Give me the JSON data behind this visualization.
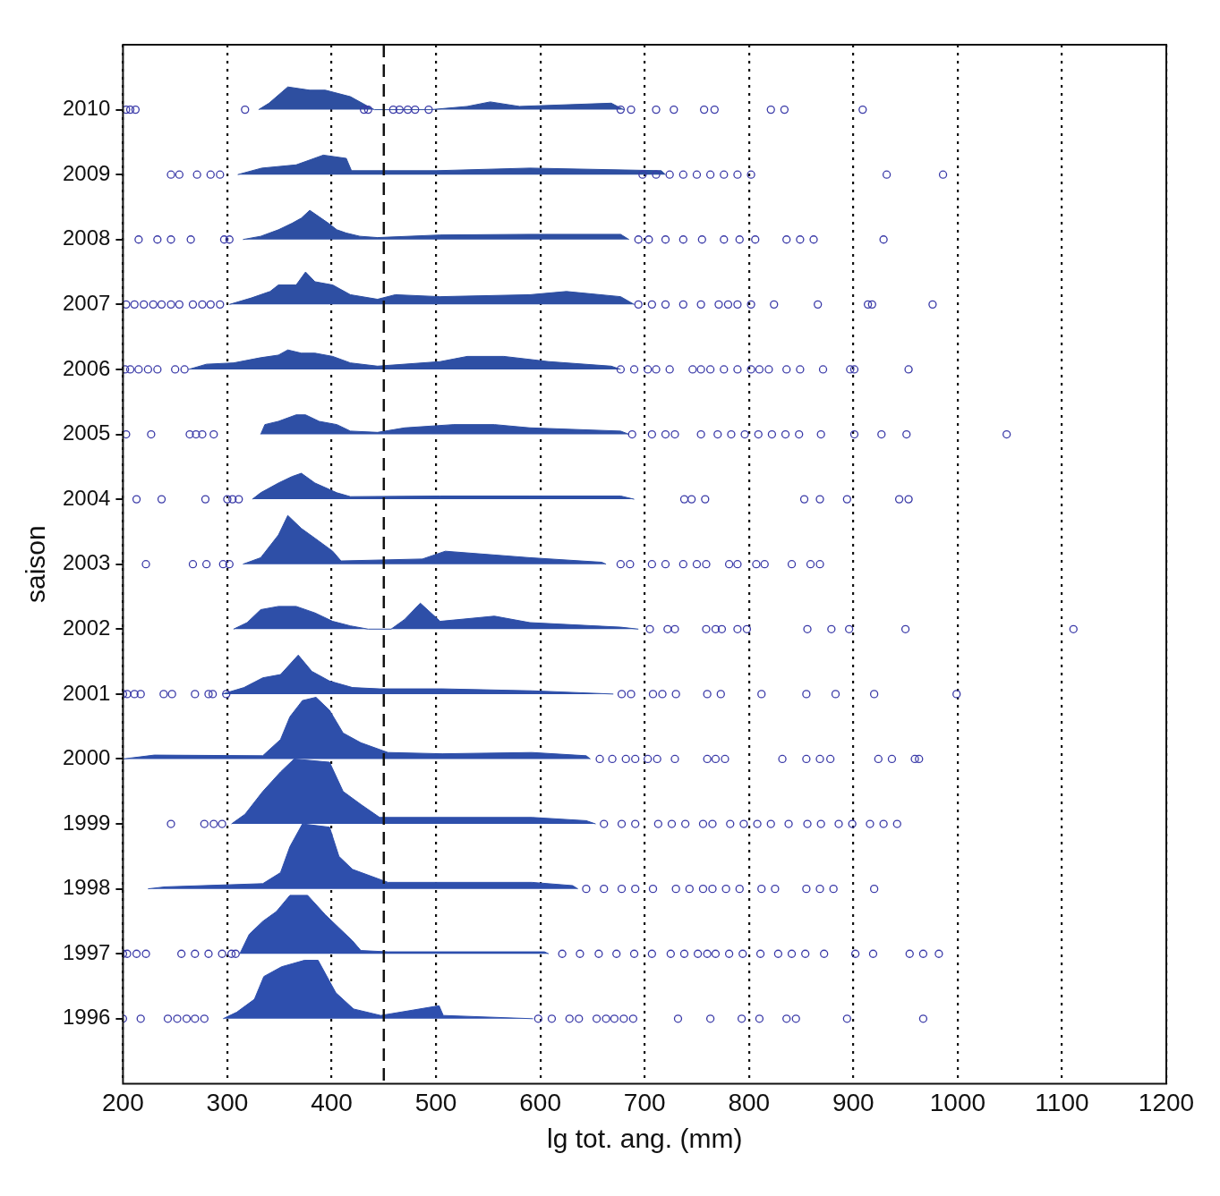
{
  "chart_data": {
    "type": "area",
    "xlabel": "lg tot. ang. (mm)",
    "ylabel": "saison",
    "xlim": [
      200,
      1200
    ],
    "xticks": [
      200,
      300,
      400,
      500,
      600,
      700,
      800,
      900,
      1000,
      1100,
      1200
    ],
    "ylim": [
      1995,
      2011
    ],
    "yticks": [
      1996,
      1997,
      1998,
      1999,
      2000,
      2001,
      2002,
      2003,
      2004,
      2005,
      2006,
      2007,
      2008,
      2009,
      2010
    ],
    "grid": "x",
    "legend": false,
    "ref_lines": [
      {
        "axis": "x",
        "value": 450,
        "line_style": "dashed"
      }
    ],
    "series": [
      {
        "color": "#2e4fa0",
        "x": [
          330,
          340,
          358,
          379,
          394,
          418,
          435,
          441,
          495,
          530,
          552,
          580,
          668,
          680
        ],
        "values": [
          2010,
          2010.1,
          2010.35,
          2010.3,
          2010.3,
          2010.2,
          2010.05,
          2010,
          2010,
          2010.05,
          2010.12,
          2010.05,
          2010.1,
          2010
        ]
      },
      {
        "color": "#2e4fa1",
        "x": [
          310,
          333,
          366,
          392,
          414,
          419,
          500,
          590,
          716,
          720
        ],
        "values": [
          2009,
          2009.1,
          2009.15,
          2009.3,
          2009.25,
          2009.06,
          2009.06,
          2009.1,
          2009.06,
          2009
        ]
      },
      {
        "color": "#2e4fa2",
        "x": [
          315,
          332,
          349,
          362,
          371,
          379,
          388,
          397,
          405,
          414,
          427,
          444,
          504,
          590,
          677,
          685
        ],
        "values": [
          2008,
          2008.05,
          2008.15,
          2008.25,
          2008.33,
          2008.45,
          2008.35,
          2008.25,
          2008.15,
          2008.1,
          2008.05,
          2008.03,
          2008.07,
          2008.08,
          2008.08,
          2008
        ]
      },
      {
        "color": "#2e4fa3",
        "x": [
          302,
          323,
          341,
          349,
          366,
          375,
          384,
          401,
          418,
          444,
          461,
          504,
          590,
          625,
          677,
          690
        ],
        "values": [
          2007,
          2007.1,
          2007.2,
          2007.3,
          2007.3,
          2007.5,
          2007.35,
          2007.3,
          2007.15,
          2007.08,
          2007.15,
          2007.12,
          2007.15,
          2007.2,
          2007.12,
          2007
        ]
      },
      {
        "color": "#2e4fa4",
        "x": [
          263,
          280,
          306,
          332,
          349,
          358,
          371,
          384,
          401,
          418,
          444,
          504,
          530,
          565,
          608,
          668,
          677
        ],
        "values": [
          2006,
          2006.08,
          2006.1,
          2006.18,
          2006.22,
          2006.3,
          2006.25,
          2006.25,
          2006.2,
          2006.1,
          2006.05,
          2006.12,
          2006.2,
          2006.2,
          2006.12,
          2006.05,
          2006
        ]
      },
      {
        "color": "#2e4fa5",
        "x": [
          332,
          336,
          349,
          366,
          375,
          388,
          405,
          418,
          444,
          470,
          517,
          556,
          590,
          677,
          685
        ],
        "values": [
          2005,
          2005.15,
          2005.2,
          2005.3,
          2005.3,
          2005.2,
          2005.15,
          2005.05,
          2005.03,
          2005.1,
          2005.15,
          2005.15,
          2005.1,
          2005.05,
          2005
        ]
      },
      {
        "color": "#2e4fa6",
        "x": [
          324,
          332,
          349,
          362,
          371,
          384,
          405,
          418,
          504,
          590,
          677,
          690
        ],
        "values": [
          2004,
          2004.1,
          2004.25,
          2004.35,
          2004.4,
          2004.25,
          2004.1,
          2004.04,
          2004.05,
          2004.05,
          2004.05,
          2004
        ]
      },
      {
        "color": "#2e4fa7",
        "x": [
          315,
          332,
          349,
          358,
          371,
          384,
          401,
          409,
          487,
          509,
          590,
          659,
          663
        ],
        "values": [
          2003,
          2003.1,
          2003.45,
          2003.75,
          2003.55,
          2003.4,
          2003.2,
          2003.05,
          2003.08,
          2003.2,
          2003.1,
          2003.03,
          2003
        ]
      },
      {
        "color": "#2e4fa8",
        "x": [
          306,
          319,
          332,
          349,
          366,
          384,
          401,
          418,
          435,
          457,
          470,
          485,
          504,
          556,
          590,
          677,
          694
        ],
        "values": [
          2002,
          2002.1,
          2002.3,
          2002.35,
          2002.35,
          2002.25,
          2002.12,
          2002.05,
          2002,
          2002,
          2002.15,
          2002.4,
          2002.12,
          2002.2,
          2002.1,
          2002.03,
          2002
        ]
      },
      {
        "color": "#2e4fa9",
        "x": [
          295,
          316,
          334,
          351,
          368,
          381,
          398,
          420,
          446,
          506,
          592,
          670
        ],
        "values": [
          2001,
          2001.1,
          2001.25,
          2001.3,
          2001.6,
          2001.35,
          2001.2,
          2001.1,
          2001.08,
          2001.08,
          2001.05,
          2001
        ]
      },
      {
        "color": "#2e4faa",
        "x": [
          200,
          230,
          334,
          351,
          360,
          372,
          385,
          398,
          411,
          428,
          454,
          506,
          592,
          644,
          648
        ],
        "values": [
          2000,
          2000.06,
          2000.05,
          2000.3,
          2000.65,
          2000.9,
          2000.95,
          2000.75,
          2000.4,
          2000.25,
          2000.1,
          2000.08,
          2000.1,
          2000.05,
          2000
        ]
      },
      {
        "color": "#2e4fab",
        "x": [
          304,
          317,
          334,
          351,
          364,
          398,
          411,
          428,
          446,
          592,
          644,
          653
        ],
        "values": [
          1999,
          1999.15,
          1999.5,
          1999.8,
          2000,
          1999.95,
          1999.5,
          1999.3,
          1999.1,
          1999.1,
          1999.05,
          1999
        ]
      },
      {
        "color": "#2e4fac",
        "x": [
          224,
          240,
          334,
          351,
          360,
          372,
          398,
          407,
          420,
          454,
          592,
          631,
          636
        ],
        "values": [
          1998,
          1998.03,
          1998.08,
          1998.25,
          1998.65,
          1999,
          1998.95,
          1998.5,
          1998.3,
          1998.1,
          1998.1,
          1998.05,
          1998
        ]
      },
      {
        "color": "#2e4fad",
        "x": [
          312,
          321,
          334,
          347,
          360,
          377,
          394,
          407,
          420,
          428,
          454,
          604,
          608
        ],
        "values": [
          1997,
          1997.3,
          1997.5,
          1997.65,
          1997.9,
          1997.9,
          1997.6,
          1997.4,
          1997.2,
          1997.05,
          1997.03,
          1997.03,
          1997
        ]
      },
      {
        "color": "#2e4fae",
        "x": [
          296,
          309,
          326,
          335,
          352,
          374,
          387,
          404,
          421,
          447,
          503,
          507,
          593
        ],
        "values": [
          1996,
          1996.1,
          1996.3,
          1996.65,
          1996.8,
          1996.9,
          1996.9,
          1996.4,
          1996.15,
          1996.05,
          1996.2,
          1996.05,
          1996
        ]
      },
      {
        "type": "scatter",
        "marker": "circle",
        "color": "#3a3aa8",
        "x": [
          203,
          207,
          212,
          317,
          431,
          435,
          459,
          465,
          473,
          480,
          493,
          677,
          687,
          711,
          728,
          757,
          767,
          821,
          834,
          909
        ],
        "values": [
          2010,
          2010,
          2010,
          2010,
          2010,
          2010,
          2010,
          2010,
          2010,
          2010,
          2010,
          2010,
          2010,
          2010,
          2010,
          2010,
          2010,
          2010,
          2010,
          2010
        ]
      },
      {
        "type": "scatter",
        "marker": "circle",
        "color": "#3a3aa8",
        "x": [
          246,
          254,
          271,
          284,
          293,
          698,
          711,
          724,
          737,
          750,
          763,
          776,
          789,
          802,
          932,
          986
        ],
        "values": [
          2009,
          2009,
          2009,
          2009,
          2009,
          2009,
          2009,
          2009,
          2009,
          2009,
          2009,
          2009,
          2009,
          2009,
          2009,
          2009
        ]
      },
      {
        "type": "scatter",
        "marker": "circle",
        "color": "#3a3aa8",
        "x": [
          215,
          233,
          246,
          265,
          297,
          302,
          694,
          704,
          720,
          737,
          755,
          776,
          791,
          806,
          836,
          849,
          862,
          929
        ],
        "values": [
          2008,
          2008,
          2008,
          2008,
          2008,
          2008,
          2008,
          2008,
          2008,
          2008,
          2008,
          2008,
          2008,
          2008,
          2008,
          2008,
          2008,
          2008
        ]
      },
      {
        "type": "scatter",
        "marker": "circle",
        "color": "#3a3aa8",
        "x": [
          203,
          211,
          220,
          229,
          237,
          246,
          254,
          267,
          276,
          284,
          293,
          694,
          707,
          720,
          737,
          754,
          771,
          780,
          789,
          802,
          824,
          866,
          914,
          918,
          976
        ],
        "values": [
          2007,
          2007,
          2007,
          2007,
          2007,
          2007,
          2007,
          2007,
          2007,
          2007,
          2007,
          2007,
          2007,
          2007,
          2007,
          2007,
          2007,
          2007,
          2007,
          2007,
          2007,
          2007,
          2007,
          2007,
          2007
        ]
      },
      {
        "type": "scatter",
        "marker": "circle",
        "color": "#3a3aa8",
        "x": [
          202,
          207,
          215,
          224,
          233,
          250,
          259,
          677,
          690,
          703,
          711,
          724,
          746,
          754,
          763,
          776,
          789,
          802,
          810,
          819,
          836,
          849,
          871,
          897,
          901,
          953
        ],
        "values": [
          2006,
          2006,
          2006,
          2006,
          2006,
          2006,
          2006,
          2006,
          2006,
          2006,
          2006,
          2006,
          2006,
          2006,
          2006,
          2006,
          2006,
          2006,
          2006,
          2006,
          2006,
          2006,
          2006,
          2006,
          2006,
          2006
        ]
      },
      {
        "type": "scatter",
        "marker": "circle",
        "color": "#3a3aa8",
        "x": [
          203,
          227,
          264,
          270,
          276,
          287,
          688,
          707,
          720,
          729,
          754,
          770,
          783,
          796,
          809,
          822,
          835,
          848,
          869,
          901,
          927,
          951,
          1047
        ],
        "values": [
          2005,
          2005,
          2005,
          2005,
          2005,
          2005,
          2005,
          2005,
          2005,
          2005,
          2005,
          2005,
          2005,
          2005,
          2005,
          2005,
          2005,
          2005,
          2005,
          2005,
          2005,
          2005,
          2005
        ]
      },
      {
        "type": "scatter",
        "marker": "circle",
        "color": "#3a3aa8",
        "x": [
          213,
          237,
          279,
          300,
          305,
          311,
          738,
          745,
          758,
          853,
          868,
          894,
          944,
          953
        ],
        "values": [
          2004,
          2004,
          2004,
          2004,
          2004,
          2004,
          2004,
          2004,
          2004,
          2004,
          2004,
          2004,
          2004,
          2004
        ]
      },
      {
        "type": "scatter",
        "marker": "circle",
        "color": "#3a3aa8",
        "x": [
          222,
          267,
          280,
          296,
          302,
          677,
          686,
          707,
          720,
          737,
          750,
          759,
          781,
          789,
          807,
          815,
          841,
          859,
          868
        ],
        "values": [
          2003,
          2003,
          2003,
          2003,
          2003,
          2003,
          2003,
          2003,
          2003,
          2003,
          2003,
          2003,
          2003,
          2003,
          2003,
          2003,
          2003,
          2003,
          2003
        ]
      },
      {
        "type": "scatter",
        "marker": "circle",
        "color": "#3a3aa8",
        "x": [
          705,
          722,
          729,
          759,
          768,
          774,
          789,
          798,
          856,
          879,
          896,
          950,
          1111
        ],
        "values": [
          2002,
          2002,
          2002,
          2002,
          2002,
          2002,
          2002,
          2002,
          2002,
          2002,
          2002,
          2002,
          2002
        ]
      },
      {
        "type": "scatter",
        "marker": "circle",
        "color": "#3a3aa8",
        "x": [
          200,
          204,
          211,
          217,
          239,
          247,
          269,
          282,
          286,
          299,
          678,
          687,
          708,
          717,
          730,
          760,
          773,
          812,
          855,
          883,
          920,
          999
        ],
        "values": [
          2001,
          2001,
          2001,
          2001,
          2001,
          2001,
          2001,
          2001,
          2001,
          2001,
          2001,
          2001,
          2001,
          2001,
          2001,
          2001,
          2001,
          2001,
          2001,
          2001,
          2001,
          2001
        ]
      },
      {
        "type": "scatter",
        "marker": "circle",
        "color": "#3a3aa8",
        "x": [
          657,
          669,
          682,
          691,
          703,
          712,
          729,
          760,
          768,
          777,
          832,
          855,
          868,
          878,
          924,
          937,
          959,
          963
        ],
        "values": [
          2000,
          2000,
          2000,
          2000,
          2000,
          2000,
          2000,
          2000,
          2000,
          2000,
          2000,
          2000,
          2000,
          2000,
          2000,
          2000,
          2000,
          2000
        ]
      },
      {
        "type": "scatter",
        "marker": "circle",
        "color": "#3a3aa8",
        "x": [
          246,
          278,
          287,
          295,
          661,
          678,
          691,
          713,
          726,
          739,
          756,
          765,
          782,
          795,
          808,
          821,
          838,
          856,
          869,
          886,
          899,
          916,
          929,
          942
        ],
        "values": [
          1999,
          1999,
          1999,
          1999,
          1999,
          1999,
          1999,
          1999,
          1999,
          1999,
          1999,
          1999,
          1999,
          1999,
          1999,
          1999,
          1999,
          1999,
          1999,
          1999,
          1999,
          1999,
          1999,
          1999
        ]
      },
      {
        "type": "scatter",
        "marker": "circle",
        "color": "#3a3aa8",
        "x": [
          644,
          661,
          678,
          691,
          708,
          730,
          743,
          756,
          765,
          778,
          791,
          812,
          825,
          855,
          868,
          881,
          920
        ],
        "values": [
          1998,
          1998,
          1998,
          1998,
          1998,
          1998,
          1998,
          1998,
          1998,
          1998,
          1998,
          1998,
          1998,
          1998,
          1998,
          1998,
          1998
        ]
      },
      {
        "type": "scatter",
        "marker": "circle",
        "color": "#3a3aa8",
        "x": [
          200,
          204,
          213,
          222,
          256,
          269,
          282,
          295,
          304,
          308,
          621,
          638,
          656,
          673,
          690,
          707,
          725,
          738,
          751,
          760,
          768,
          781,
          794,
          811,
          828,
          841,
          854,
          872,
          902,
          919,
          954,
          967,
          982
        ],
        "values": [
          1997,
          1997,
          1997,
          1997,
          1997,
          1997,
          1997,
          1997,
          1997,
          1997,
          1997,
          1997,
          1997,
          1997,
          1997,
          1997,
          1997,
          1997,
          1997,
          1997,
          1997,
          1997,
          1997,
          1997,
          1997,
          1997,
          1997,
          1997,
          1997,
          1997,
          1997,
          1997,
          1997
        ]
      },
      {
        "type": "scatter",
        "marker": "circle",
        "color": "#3a3aa8",
        "x": [
          200,
          217,
          243,
          252,
          261,
          269,
          278,
          598,
          611,
          628,
          637,
          654,
          663,
          671,
          680,
          689,
          732,
          763,
          793,
          810,
          836,
          845,
          894,
          967
        ],
        "values": [
          1996,
          1996,
          1996,
          1996,
          1996,
          1996,
          1996,
          1996,
          1996,
          1996,
          1996,
          1996,
          1996,
          1996,
          1996,
          1996,
          1996,
          1996,
          1996,
          1996,
          1996,
          1996,
          1996,
          1996
        ]
      }
    ]
  }
}
